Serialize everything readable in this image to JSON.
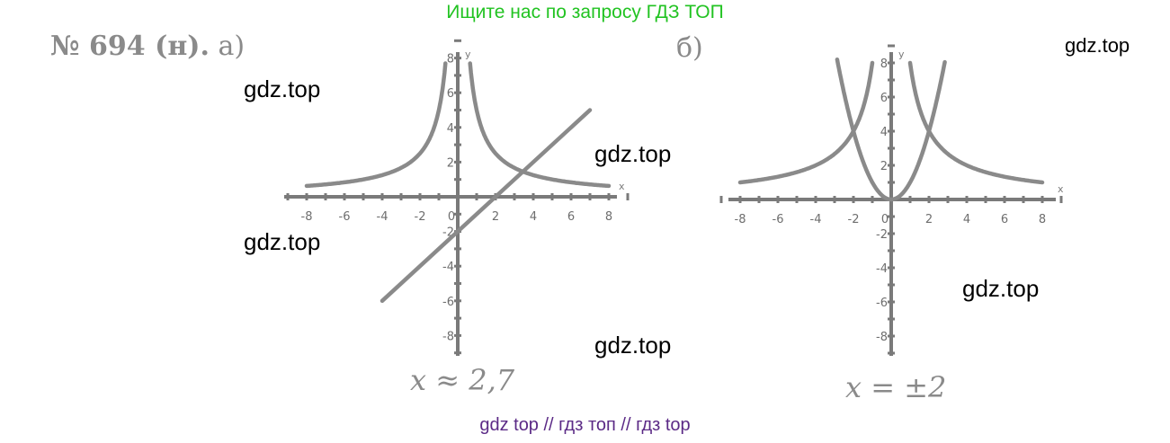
{
  "banner": "Ищите нас по запросу ГДЗ ТОП",
  "problem": {
    "number": "№ 694 (н).",
    "part_a": "а)",
    "part_b": "б)"
  },
  "watermark": "gdz.top",
  "footer": "gdz top  //  гдз топ  //  гдз top",
  "chart_data": [
    {
      "type": "line",
      "title": "а)",
      "xlabel": "x",
      "ylabel": "y",
      "xlim": [
        -9,
        9
      ],
      "ylim": [
        -9,
        9
      ],
      "x_ticks": [
        "-8",
        "-6",
        "-4",
        "-2",
        "0",
        "2",
        "4",
        "6",
        "8"
      ],
      "y_ticks": [
        "8",
        "6",
        "4",
        "2",
        "-2",
        "-4",
        "-6",
        "-8"
      ],
      "series": [
        {
          "name": "y = 5/|x|",
          "formula": "5/|x|"
        },
        {
          "name": "y = x - 2",
          "formula": "x-2",
          "x": [
            -4,
            7
          ],
          "y": [
            -6,
            5
          ]
        }
      ],
      "answer": "x ≈ 2,7"
    },
    {
      "type": "line",
      "title": "б)",
      "xlabel": "x",
      "ylabel": "y",
      "xlim": [
        -9,
        9
      ],
      "ylim": [
        -9,
        9
      ],
      "x_ticks": [
        "-8",
        "-6",
        "-4",
        "-2",
        "0",
        "2",
        "4",
        "6",
        "8"
      ],
      "y_ticks": [
        "8",
        "6",
        "4",
        "2",
        "-2",
        "-4",
        "-6",
        "-8"
      ],
      "series": [
        {
          "name": "y = 8/|x|",
          "formula": "8/|x|"
        },
        {
          "name": "y = x²",
          "formula": "x^2"
        }
      ],
      "answer": "x = ±2"
    }
  ]
}
